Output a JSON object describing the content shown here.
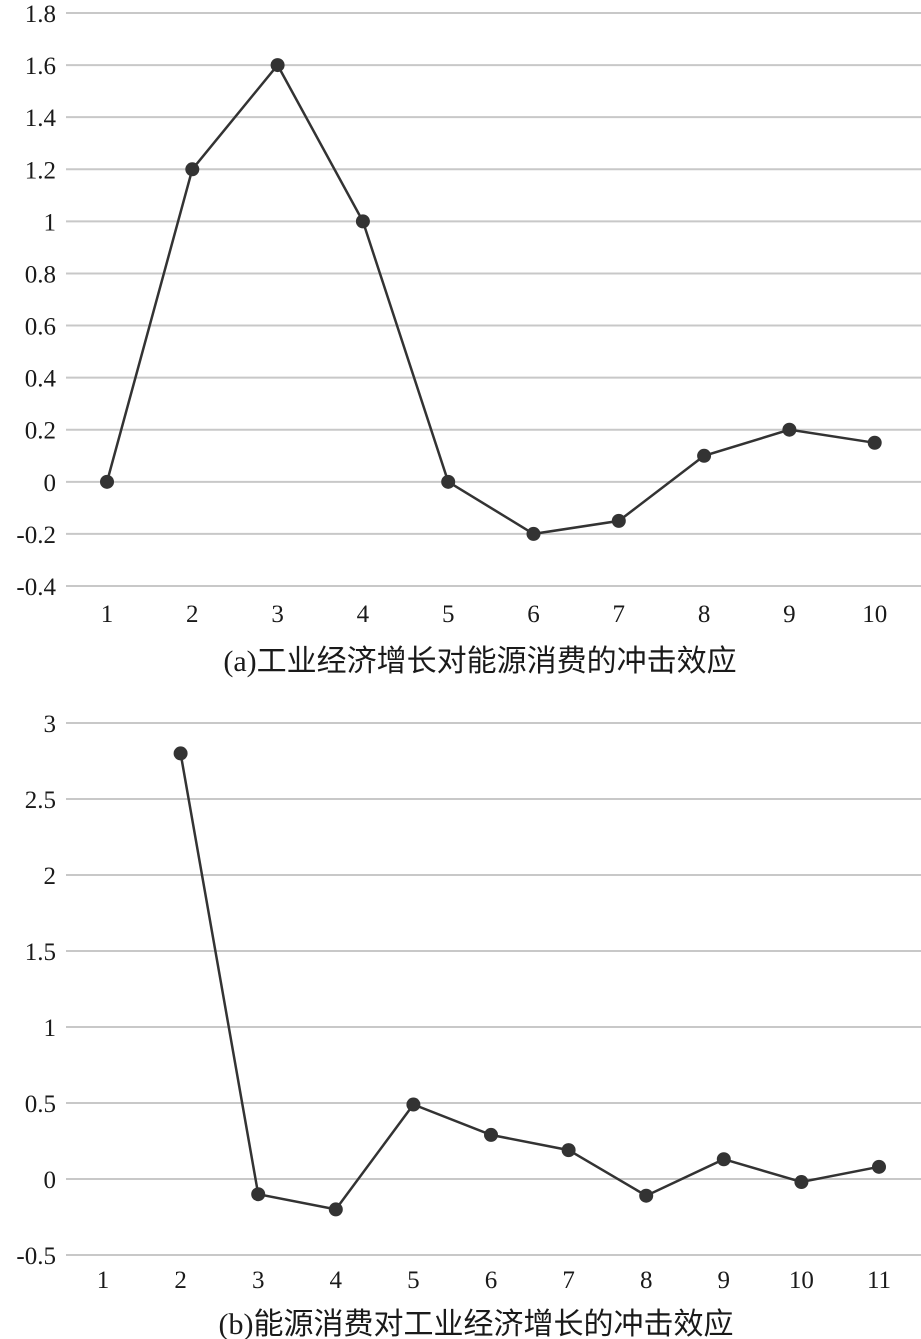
{
  "chart_data": [
    {
      "type": "line",
      "title": "(a)工业经济增长对能源消费的冲击效应",
      "x": [
        1,
        2,
        3,
        4,
        5,
        6,
        7,
        8,
        9,
        10
      ],
      "x_tick_labels": [
        "1",
        "2",
        "3",
        "4",
        "5",
        "6",
        "7",
        "8",
        "9",
        "10"
      ],
      "y_ticks": [
        "-0.4",
        "-0.2",
        "0",
        "0.2",
        "0.4",
        "0.6",
        "0.8",
        "1",
        "1.2",
        "1.4",
        "1.6",
        "1.8"
      ],
      "ylim": [
        -0.4,
        1.8
      ],
      "grid": true,
      "legend": "none",
      "series": [
        {
          "x": [
            1,
            2,
            3,
            4,
            5,
            6,
            7,
            8,
            9,
            10
          ],
          "values": [
            0,
            1.2,
            1.6,
            1.0,
            0,
            -0.2,
            -0.15,
            0.1,
            0.2,
            0.15
          ]
        }
      ]
    },
    {
      "type": "line",
      "title": "(b)能源消费对工业经济增长的冲击效应",
      "x": [
        1,
        2,
        3,
        4,
        5,
        6,
        7,
        8,
        9,
        10,
        11
      ],
      "x_tick_labels": [
        "1",
        "2",
        "3",
        "4",
        "5",
        "6",
        "7",
        "8",
        "9",
        "10",
        "11"
      ],
      "y_ticks": [
        "-0.5",
        "0",
        "0.5",
        "1",
        "1.5",
        "2",
        "2.5",
        "3"
      ],
      "ylim": [
        -0.5,
        3
      ],
      "grid": true,
      "legend": "none",
      "series": [
        {
          "x": [
            2,
            3,
            4,
            5,
            6,
            7,
            8,
            9,
            10,
            11
          ],
          "values": [
            2.8,
            -0.1,
            -0.2,
            0.49,
            0.29,
            0.19,
            -0.11,
            0.13,
            -0.02,
            0.08
          ]
        }
      ]
    }
  ]
}
